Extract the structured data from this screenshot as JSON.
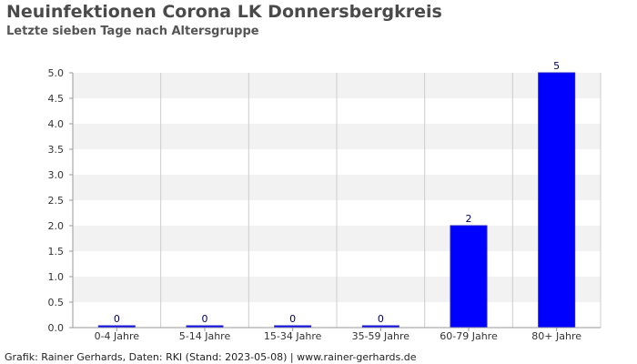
{
  "title": "Neuinfektionen Corona LK Donnersbergkreis",
  "subtitle": "Letzte sieben Tage nach Altersgruppe",
  "footer": "Grafik: Rainer Gerhards, Daten: RKI (Stand: 2023-05-08) | www.rainer-gerhards.de",
  "chart_data": {
    "type": "bar",
    "title": "Neuinfektionen Corona LK Donnersbergkreis",
    "subtitle": "Letzte sieben Tage nach Altersgruppe",
    "xlabel": "",
    "ylabel": "",
    "categories": [
      "0-4 Jahre",
      "5-14 Jahre",
      "15-34 Jahre",
      "35-59 Jahre",
      "60-79 Jahre",
      "80+ Jahre"
    ],
    "values": [
      0,
      0,
      0,
      0,
      2,
      5
    ],
    "data_labels": [
      "0",
      "0",
      "0",
      "0",
      "2",
      "5"
    ],
    "ylim": [
      0,
      5
    ],
    "yticks": [
      "0.0",
      "0.5",
      "1.0",
      "1.5",
      "2.0",
      "2.5",
      "3.0",
      "3.5",
      "4.0",
      "4.5",
      "5.0"
    ],
    "grid": true,
    "legend": "none",
    "bar_color": "#0000ff",
    "band_color": "#f2f2f2",
    "grid_color": "#cccccc"
  }
}
